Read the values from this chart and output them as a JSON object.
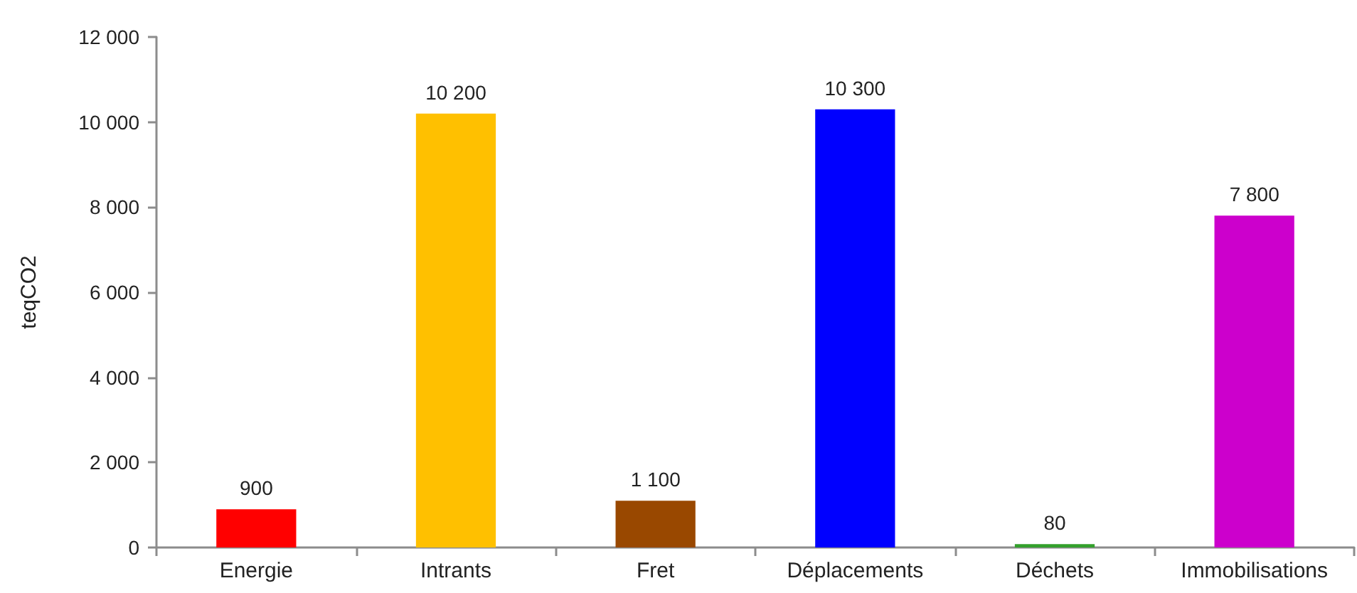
{
  "chart_data": {
    "type": "bar",
    "ylabel": "teqCO2",
    "categories": [
      "Energie",
      "Intrants",
      "Fret",
      "Déplacements",
      "Déchets",
      "Immobilisations"
    ],
    "values": [
      900,
      10200,
      1100,
      10300,
      80,
      7800
    ],
    "colors": [
      "#ff0000",
      "#ffc000",
      "#994800",
      "#0000ff",
      "#33a02c",
      "#cc00cc"
    ],
    "value_labels": [
      "900",
      "10 200",
      "1 100",
      "10 300",
      "80",
      "7 800"
    ],
    "ylim": [
      0,
      12000
    ],
    "yticks": [
      0,
      {
        "value": 2000,
        "label": "2 000"
      },
      {
        "value": 4000,
        "label": "4 000"
      },
      {
        "value": 6000,
        "label": "6 000"
      },
      {
        "value": 8000,
        "label": "8 000"
      },
      {
        "value": 10000,
        "label": "10 000"
      },
      {
        "value": 12000,
        "label": "12 000"
      }
    ]
  }
}
